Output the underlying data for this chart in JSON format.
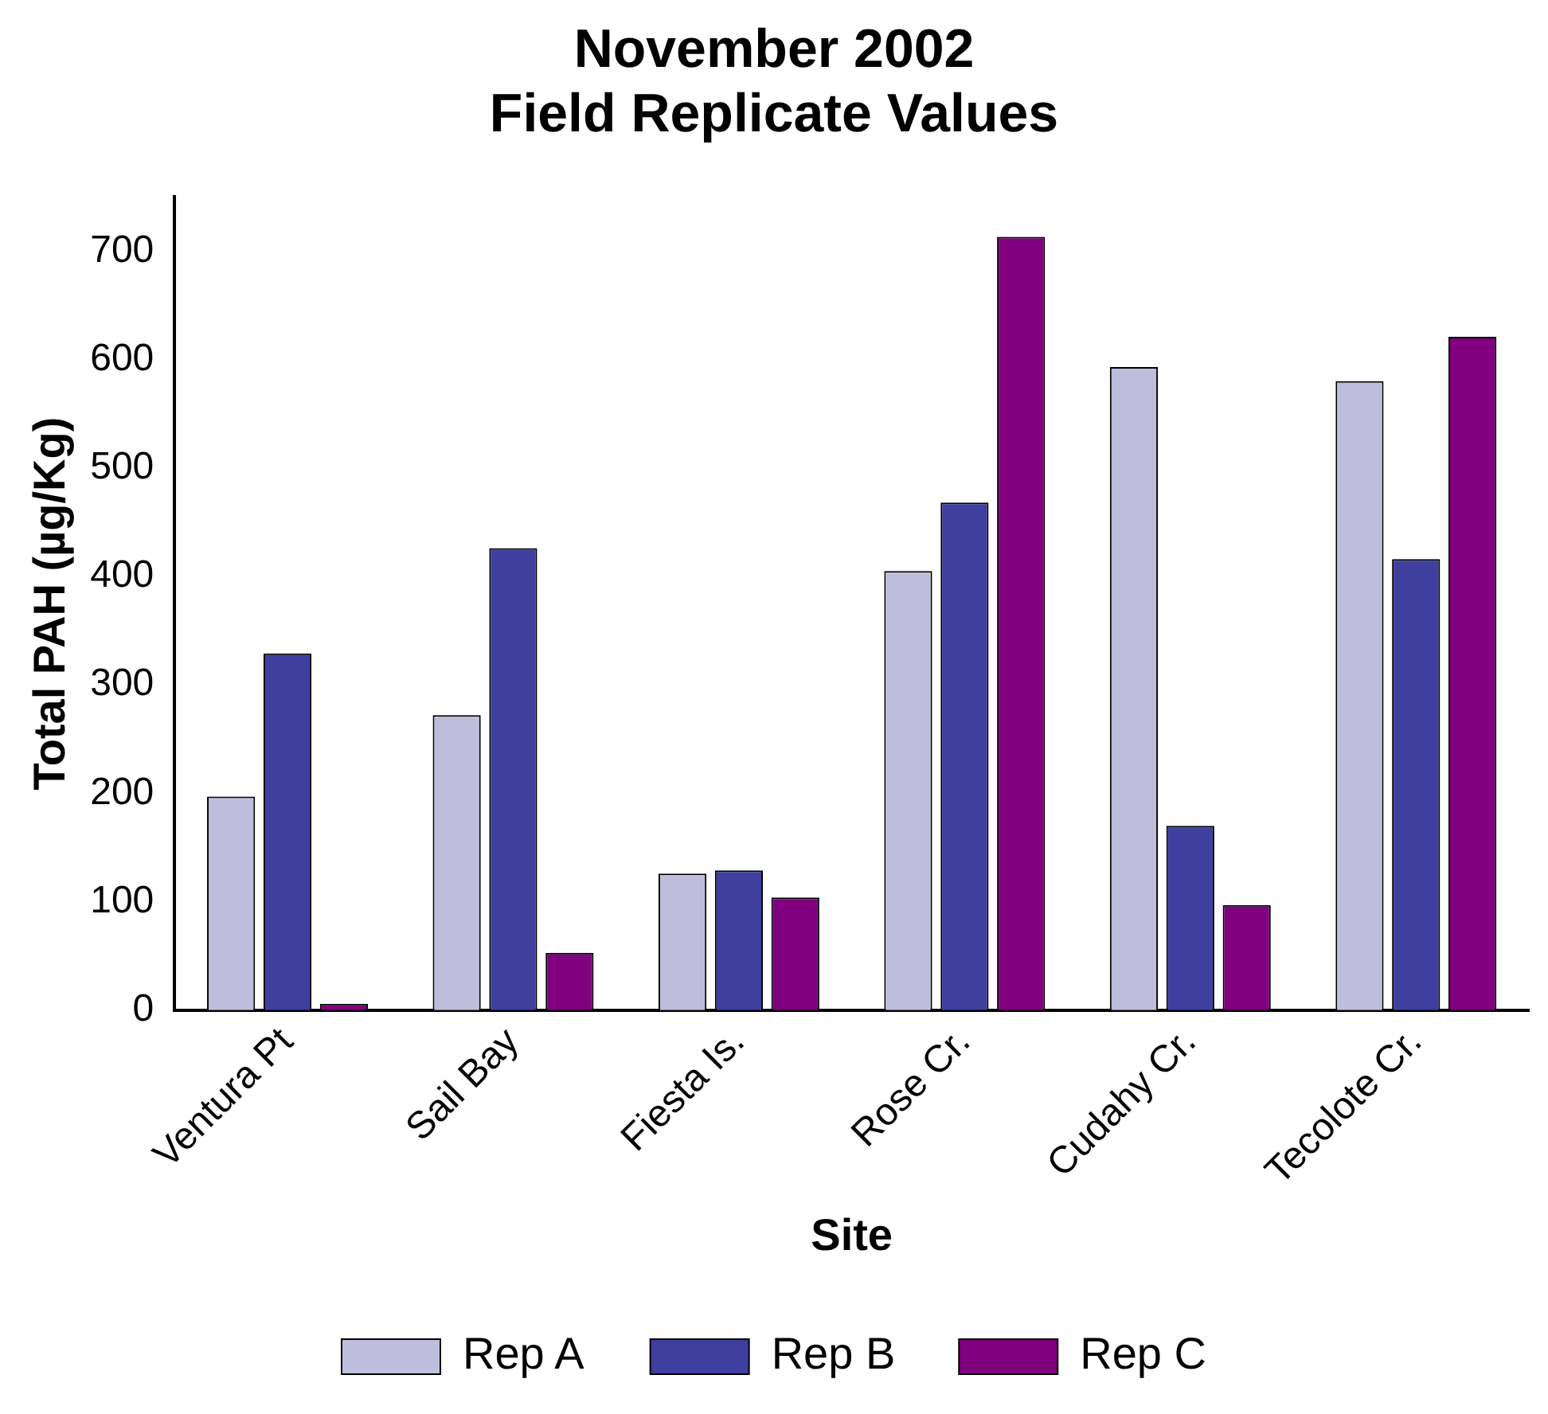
{
  "chart_data": {
    "type": "bar",
    "title": [
      "November 2002",
      "Field Replicate Values"
    ],
    "xlabel": "Site",
    "ylabel": "Total PAH (µg/Kg)",
    "categories": [
      "Ventura Pt",
      "Sail Bay",
      "Fiesta Is.",
      "Rose Cr.",
      "Cudahy Cr.",
      "Tecolote Cr."
    ],
    "series": [
      {
        "name": "Rep A",
        "color": "#bebedc",
        "values": [
          197,
          272,
          126,
          405,
          593,
          580
        ]
      },
      {
        "name": "Rep B",
        "color": "#3f3f9f",
        "values": [
          329,
          426,
          129,
          468,
          170,
          416
        ]
      },
      {
        "name": "Rep C",
        "color": "#80007f",
        "values": [
          6,
          53,
          104,
          713,
          97,
          621
        ]
      }
    ],
    "ylim": [
      0,
      750
    ],
    "yticks": [
      0,
      100,
      200,
      300,
      400,
      500,
      600,
      700
    ],
    "grid": false,
    "legend": "bottom"
  }
}
